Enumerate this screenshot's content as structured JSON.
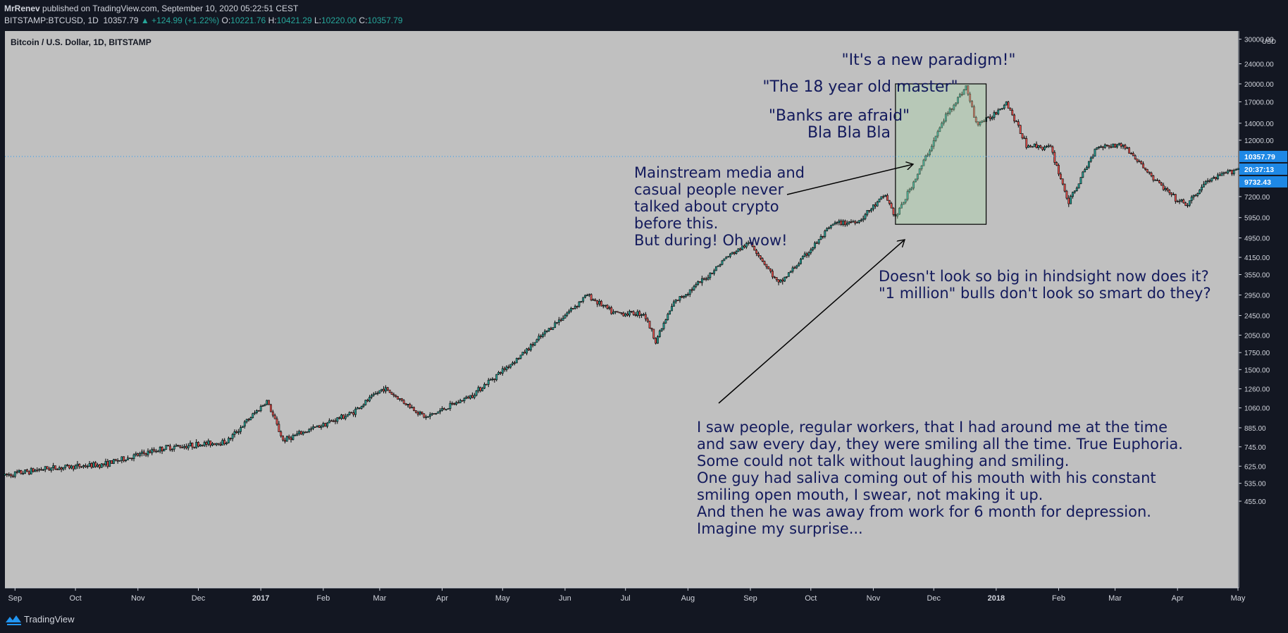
{
  "header": {
    "author": "MrRenev",
    "published_text": "published on TradingView.com, September 10, 2020 05:22:51 CEST",
    "symbol": "BITSTAMP:BTCUSD, 1D",
    "last": "10357.79",
    "change": "▲ +124.99 (+1.22%)",
    "o_label": "O:",
    "o_value": "10221.76",
    "h_label": "H:",
    "h_value": "10421.29",
    "l_label": "L:",
    "l_value": "10220.00",
    "c_label": "C:",
    "c_value": "10357.79"
  },
  "footer": {
    "brand": "TradingView"
  },
  "colors": {
    "bg": "#c0c0c0",
    "up": "#26a69a",
    "down": "#ef5350",
    "accent": "#2196f3",
    "text": "#131a5c"
  },
  "chart_data": {
    "type": "candlestick",
    "title": "Bitcoin / U.S. Dollar, 1D, BITSTAMP",
    "currency": "USD",
    "scale": "log",
    "ylim": [
      400,
      32000
    ],
    "y_ticks": [
      "30000.00",
      "24000.00",
      "20000.00",
      "17000.00",
      "14000.00",
      "12000.00",
      "7200.00",
      "5950.00",
      "4950.00",
      "4150.00",
      "3550.00",
      "2950.00",
      "2450.00",
      "2050.00",
      "1750.00",
      "1500.00",
      "1260.00",
      "1060.00",
      "885.00",
      "745.00",
      "625.00",
      "535.00",
      "455.00"
    ],
    "x_ticks": [
      "Sep",
      "Oct",
      "Nov",
      "Dec",
      "2017",
      "Feb",
      "Mar",
      "Apr",
      "May",
      "Jun",
      "Jul",
      "Aug",
      "Sep",
      "Oct",
      "Nov",
      "Dec",
      "2018",
      "Feb",
      "Mar",
      "Apr",
      "May"
    ],
    "price_badges": {
      "last": "10357.79",
      "countdown": "20:37:13",
      "other": "9732.43"
    },
    "approx_close_path": {
      "dates": [
        "2016-08-27",
        "2016-09-15",
        "2016-10-15",
        "2016-11-15",
        "2016-12-15",
        "2017-01-04",
        "2017-01-12",
        "2017-02-15",
        "2017-03-03",
        "2017-03-24",
        "2017-04-15",
        "2017-05-10",
        "2017-05-25",
        "2017-06-12",
        "2017-06-25",
        "2017-07-10",
        "2017-07-16",
        "2017-07-25",
        "2017-08-10",
        "2017-08-20",
        "2017-09-01",
        "2017-09-15",
        "2017-09-25",
        "2017-10-12",
        "2017-10-25",
        "2017-11-07",
        "2017-11-12",
        "2017-11-25",
        "2017-12-07",
        "2017-12-17",
        "2017-12-22",
        "2017-12-28",
        "2018-01-06",
        "2018-01-16",
        "2018-01-28",
        "2018-02-06",
        "2018-02-20",
        "2018-03-05",
        "2018-03-20",
        "2018-04-01",
        "2018-04-06",
        "2018-04-15",
        "2018-04-30"
      ],
      "values": [
        575,
        610,
        635,
        740,
        780,
        1130,
        790,
        1010,
        1270,
        970,
        1180,
        1700,
        2200,
        2950,
        2500,
        2500,
        1950,
        2750,
        3450,
        4150,
        4750,
        3250,
        3950,
        5600,
        5800,
        7300,
        5950,
        9500,
        15000,
        19500,
        14000,
        14500,
        17000,
        11500,
        11200,
        6800,
        11400,
        11500,
        8500,
        6900,
        6700,
        8200,
        9250
      ]
    },
    "highlight_box": {
      "start": "2017-11-12",
      "end": "2017-12-27",
      "low": 5600,
      "high": 20000
    },
    "annotations": {
      "paradigm": "\"It's a new paradigm!\"",
      "master": "\"The 18 year old master\"",
      "banks": "\"Banks are afraid\"",
      "blabla": "Bla Bla Bla",
      "media": [
        "Mainstream media and",
        "casual people never",
        "talked about crypto",
        "before this.",
        "But during! Oh wow!"
      ],
      "hindsight": [
        "Doesn't look so big in hindsight now does it?",
        "\"1 million\" bulls don't look so smart do they?"
      ],
      "story": [
        "I saw people, regular workers, that I had around me at the time",
        "and saw every day, they were smiling all the time. True Euphoria.",
        "Some could not talk without laughing and smiling.",
        "One guy had saliva coming out of his mouth with his constant",
        "smiling open mouth, I swear, not making it up.",
        "And then he was away from work for 6 month for depression.",
        "Imagine my surprise..."
      ]
    }
  }
}
